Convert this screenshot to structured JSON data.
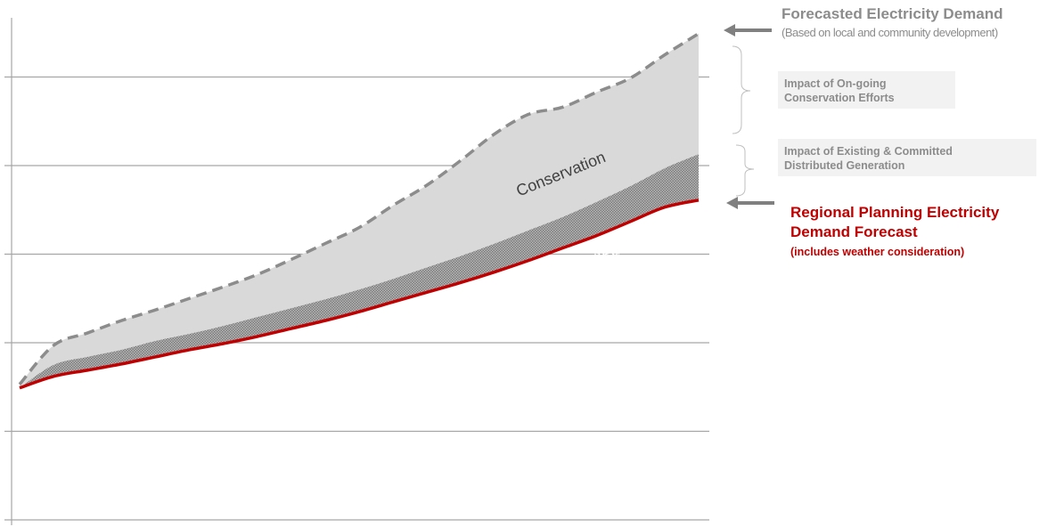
{
  "annotations": {
    "forecast_demand": "Forecasted Electricity Demand",
    "forecast_basis": "(Based on local and community development)",
    "conservation_impact": [
      "Impact of On-going",
      "Conservation Efforts"
    ],
    "dg_impact": [
      "Impact of  Existing & Committed",
      "Distributed Generation"
    ],
    "regional_forecast": "Regional Planning Electricity Demand Forecast",
    "regional_note": "(includes weather consideration)"
  },
  "colors": {
    "forecast_line": "#8c8c8c",
    "conservation_fill": "#d9d9d9",
    "dg_fill": "#a6a6a6",
    "regional_line": "#c00000",
    "gridline": "#a6a6a6",
    "arrow": "#808080",
    "brace": "#bfbfbf"
  },
  "chart_data": {
    "type": "area",
    "x": [
      0,
      5,
      10,
      15,
      20,
      25,
      30,
      35,
      40,
      45,
      50,
      55,
      60,
      65,
      70,
      75,
      80,
      85,
      90,
      95,
      100
    ],
    "xlim": [
      -1.5,
      100
    ],
    "ylim": [
      0,
      5.4
    ],
    "yticks": [
      0,
      1,
      2,
      3,
      4,
      5
    ],
    "grid": true,
    "series": [
      {
        "name": "Forecasted Electricity Demand",
        "style": "dashed",
        "values": [
          1.53,
          1.97,
          2.11,
          2.25,
          2.37,
          2.5,
          2.63,
          2.77,
          2.94,
          3.12,
          3.3,
          3.55,
          3.78,
          4.06,
          4.36,
          4.58,
          4.66,
          4.83,
          4.99,
          5.25,
          5.49
        ]
      },
      {
        "name": "Distributed Generation",
        "values": [
          1.49,
          1.75,
          1.84,
          1.92,
          2.02,
          2.1,
          2.19,
          2.29,
          2.39,
          2.49,
          2.6,
          2.72,
          2.85,
          2.98,
          3.12,
          3.27,
          3.42,
          3.59,
          3.77,
          3.97,
          4.13
        ]
      },
      {
        "name": "Regional Planning Electricity Demand Forecast",
        "values": [
          1.49,
          1.62,
          1.69,
          1.76,
          1.84,
          1.92,
          1.99,
          2.07,
          2.16,
          2.25,
          2.35,
          2.46,
          2.57,
          2.68,
          2.8,
          2.93,
          3.07,
          3.21,
          3.37,
          3.53,
          3.61
        ]
      }
    ],
    "area_labels": [
      "Conservation",
      "Distributed  Generation"
    ]
  }
}
